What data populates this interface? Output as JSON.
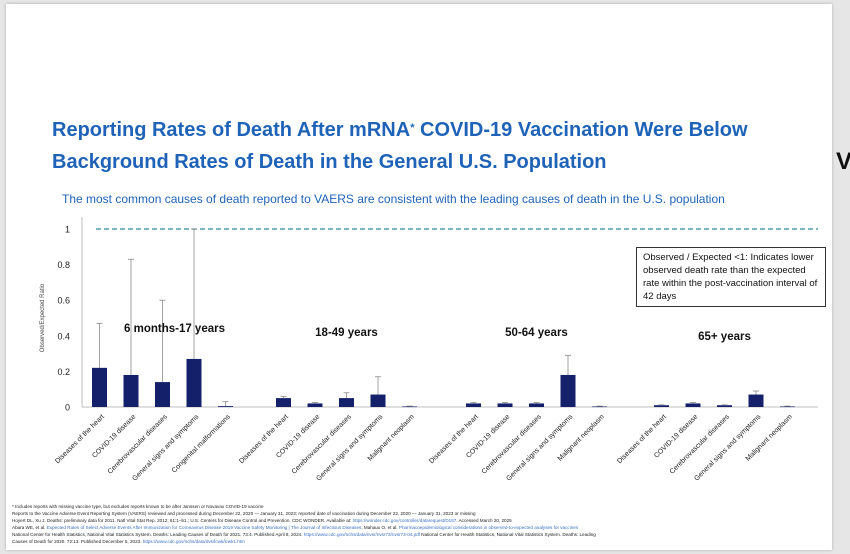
{
  "title_line1": "Reporting Rates of Death After mRNA",
  "title_sup": "*",
  "title_line1_rest": " COVID-19 Vaccination Were Below",
  "title_line2": "Background Rates of Death in the General U.S. Population",
  "subtitle": "The most common causes of death reported to VAERS are consistent with the leading causes of death in the U.S. population",
  "callout": "Observed / Expected <1: Indicates lower observed death rate than the expected rate within the post-vaccination interval of 42 days",
  "edge_glyph": "V",
  "footnotes": {
    "line1": "* Includes reports with missing vaccine type, but excludes reports known to be after Janssen or Novavax COVID-19 vaccine",
    "line2": "Reports to the Vaccine Adverse Event Reporting System (VAERS) reviewed and processed during December 22, 2020 — January 31, 2023; reported date of vaccination during December 22, 2020 — January 31, 2023 or missing",
    "line3a": "Hoyert DL, Xu J. Deaths: preliminary data for 2011. Natl Vital Stat Rep. 2012; 61:1–51.; U.S. Centers for Disease Control and Prevention. CDC WONDER. Available at:",
    "line3b": "https://wonder.cdc.gov/controller/datarequest/D157",
    "line3c": ". Accessed March 20, 2025",
    "line4a": "Abara WE, et al.",
    "line4b": "Expected Rates of Select Adverse Events After Immunization for Coronavirus Disease 2019 Vaccine Safety Monitoring | The Journal of Infectious Diseases",
    "line4c": "; Mahaux O, et al.",
    "line4d": "Pharmacoepidemiological considerations in observed-to-expected analyses for vaccines",
    "line5a": "National Center for Health Statistics, National Vital Statistics System. Deaths: Leading Causes of Death for 2021. 73:4. Published April 8, 2024.",
    "line5b": "https://www.cdc.gov/nchs/data/nvsr/nvsr73/nvsr73-04.pdf",
    "line5c": "National Center for Health Statistics, National Vital Statistics System. Deaths: Leading",
    "line6a": "Causes of Death for 2020. 72:13. Published December 5, 2023.",
    "line6b": "https://www.cdc.gov/nchs/data/dvs/lcwk/lcwk1.htm"
  },
  "colors": {
    "title": "#1f63b8",
    "bar": "#15206b",
    "refline": "#2e8b9a"
  },
  "chart_data": {
    "type": "bar",
    "ylabel": "Observed/Expected Ratio",
    "ylim": [
      0,
      1
    ],
    "yticks": [
      "0",
      "0.2",
      "0.4",
      "0.6",
      "0.8",
      "1"
    ],
    "reference_line": 1,
    "groups": [
      {
        "name": "6 months-17 years",
        "categories": [
          "Diseases of the heart",
          "COVID-19 disease",
          "Cerebrovascular diseases",
          "General signs and symptoms",
          "Congenital malformations"
        ],
        "values": [
          0.22,
          0.18,
          0.14,
          0.27,
          0.005
        ],
        "error_upper": [
          0.47,
          0.83,
          0.6,
          1.0,
          0.03
        ]
      },
      {
        "name": "18-49 years",
        "categories": [
          "Diseases of the heart",
          "COVID-19 disease",
          "Cerebrovascular diseases",
          "General signs and symptoms",
          "Malignant neoplasm"
        ],
        "values": [
          0.05,
          0.02,
          0.05,
          0.07,
          0.003
        ],
        "error_upper": [
          0.06,
          0.025,
          0.08,
          0.17,
          0.005
        ]
      },
      {
        "name": "50-64 years",
        "categories": [
          "Diseases of the heart",
          "COVID-19 disease",
          "Cerebrovascular diseases",
          "General signs and symptoms",
          "Malignant neoplasm"
        ],
        "values": [
          0.02,
          0.02,
          0.02,
          0.18,
          0.003
        ],
        "error_upper": [
          0.025,
          0.025,
          0.025,
          0.29,
          0.005
        ]
      },
      {
        "name": "65+ years",
        "categories": [
          "Diseases of the heart",
          "COVID-19 disease",
          "Cerebrovascular diseases",
          "General signs and symptoms",
          "Malignant neoplasm"
        ],
        "values": [
          0.01,
          0.02,
          0.01,
          0.07,
          0.003
        ],
        "error_upper": [
          0.012,
          0.025,
          0.012,
          0.09,
          0.005
        ]
      }
    ]
  }
}
